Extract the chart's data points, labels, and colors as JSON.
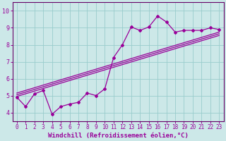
{
  "xlabel": "Windchill (Refroidissement éolien,°C)",
  "bg_color": "#cce8e8",
  "grid_color": "#99cccc",
  "line_color": "#990099",
  "spine_color": "#660066",
  "xlim": [
    -0.5,
    23.5
  ],
  "ylim": [
    3.5,
    10.5
  ],
  "xticks": [
    0,
    1,
    2,
    3,
    4,
    5,
    6,
    7,
    8,
    9,
    10,
    11,
    12,
    13,
    14,
    15,
    16,
    17,
    18,
    19,
    20,
    21,
    22,
    23
  ],
  "yticks": [
    4,
    5,
    6,
    7,
    8,
    9,
    10
  ],
  "scatter_x": [
    0,
    1,
    2,
    3,
    4,
    5,
    6,
    7,
    8,
    9,
    10,
    11,
    12,
    13,
    14,
    15,
    16,
    17,
    18,
    19,
    20,
    21,
    22,
    23
  ],
  "scatter_y": [
    4.9,
    4.35,
    5.1,
    5.3,
    3.9,
    4.35,
    4.5,
    4.6,
    5.15,
    5.0,
    5.4,
    7.25,
    8.0,
    9.05,
    8.85,
    9.05,
    9.7,
    9.35,
    8.75,
    8.85,
    8.85,
    8.85,
    9.0,
    8.9
  ],
  "line1_x": [
    0,
    23
  ],
  "line1_y": [
    5.05,
    8.65
  ],
  "line2_x": [
    0,
    23
  ],
  "line2_y": [
    5.15,
    8.75
  ],
  "line3_x": [
    0,
    23
  ],
  "line3_y": [
    4.95,
    8.55
  ],
  "tick_fontsize": 5.5,
  "xlabel_fontsize": 6.5
}
